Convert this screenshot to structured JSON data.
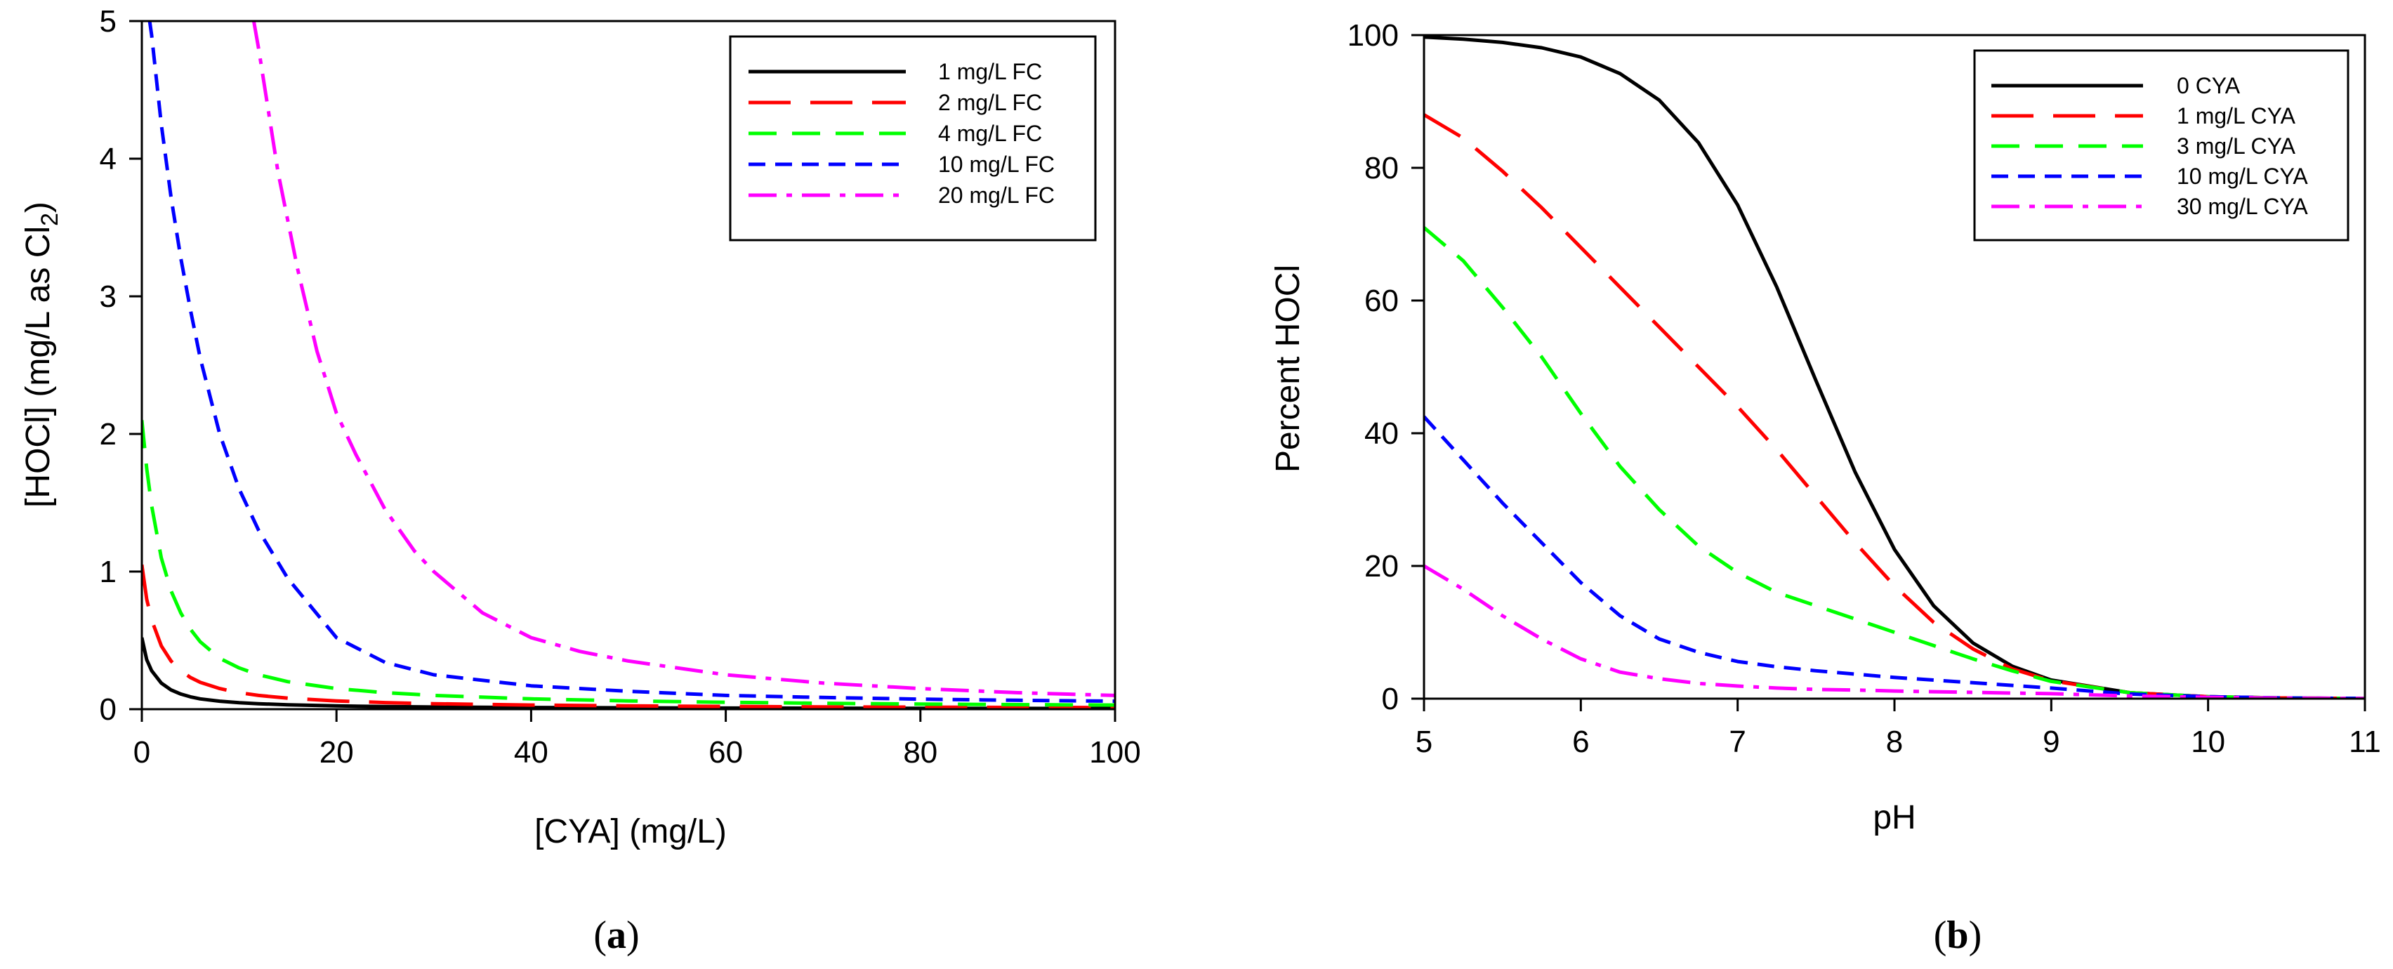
{
  "chart_data": [
    {
      "type": "line",
      "panel_label": "a",
      "title": "",
      "xlabel": "[CYA] (mg/L)",
      "ylabel": "[HOCl] (mg/L as Cl",
      "ylabel_subscript": "2",
      "ylabel_suffix": ")",
      "xlim": [
        0,
        100
      ],
      "ylim": [
        0,
        5
      ],
      "xticks": [
        0,
        20,
        40,
        60,
        80,
        100
      ],
      "yticks": [
        0,
        1,
        2,
        3,
        4,
        5
      ],
      "grid": false,
      "legend_position": "top-right",
      "series": [
        {
          "name": "1 mg/L FC",
          "color": "#000000",
          "dash": "solid",
          "x": [
            0,
            0.5,
            1,
            2,
            3,
            4,
            5,
            6,
            8,
            10,
            12,
            15,
            20,
            25,
            30,
            40,
            50,
            60,
            70,
            80,
            90,
            100
          ],
          "y": [
            0.52,
            0.36,
            0.28,
            0.19,
            0.14,
            0.11,
            0.09,
            0.075,
            0.058,
            0.047,
            0.04,
            0.032,
            0.024,
            0.019,
            0.016,
            0.012,
            0.01,
            0.008,
            0.007,
            0.006,
            0.0055,
            0.005
          ]
        },
        {
          "name": "2 mg/L FC",
          "color": "#ff0000",
          "dash": "long-dash",
          "x": [
            0,
            0.5,
            1,
            2,
            3,
            4,
            5,
            6,
            8,
            10,
            12,
            15,
            20,
            25,
            30,
            40,
            50,
            60,
            70,
            80,
            90,
            100
          ],
          "y": [
            1.05,
            0.8,
            0.65,
            0.46,
            0.35,
            0.28,
            0.23,
            0.195,
            0.15,
            0.12,
            0.1,
            0.08,
            0.06,
            0.048,
            0.04,
            0.03,
            0.024,
            0.02,
            0.017,
            0.015,
            0.013,
            0.012
          ]
        },
        {
          "name": "4 mg/L FC",
          "color": "#00ff00",
          "dash": "medium-dash",
          "x": [
            0,
            0.5,
            1,
            2,
            3,
            4,
            5,
            6,
            8,
            10,
            12,
            15,
            20,
            25,
            30,
            40,
            50,
            60,
            70,
            80,
            90,
            100
          ],
          "y": [
            2.1,
            1.75,
            1.48,
            1.1,
            0.86,
            0.7,
            0.58,
            0.49,
            0.37,
            0.3,
            0.25,
            0.2,
            0.15,
            0.12,
            0.1,
            0.075,
            0.06,
            0.05,
            0.043,
            0.037,
            0.033,
            0.03
          ]
        },
        {
          "name": "10 mg/L FC",
          "color": "#0000ff",
          "dash": "short-dash",
          "x": [
            0.8,
            1,
            2,
            3,
            4,
            5,
            6,
            8,
            10,
            12,
            15,
            20,
            25,
            30,
            40,
            50,
            60,
            70,
            80,
            90,
            100
          ],
          "y": [
            5.0,
            4.9,
            4.25,
            3.72,
            3.28,
            2.9,
            2.55,
            2.0,
            1.6,
            1.3,
            0.95,
            0.52,
            0.34,
            0.25,
            0.17,
            0.13,
            0.1,
            0.085,
            0.073,
            0.065,
            0.058
          ]
        },
        {
          "name": "20 mg/L FC",
          "color": "#ff00ff",
          "dash": "dash-dot",
          "x": [
            11.5,
            12,
            14,
            16,
            18,
            20,
            22,
            25,
            28,
            30,
            35,
            40,
            45,
            50,
            60,
            70,
            80,
            90,
            100
          ],
          "y": [
            5.0,
            4.8,
            3.9,
            3.2,
            2.6,
            2.15,
            1.85,
            1.45,
            1.15,
            1.0,
            0.7,
            0.52,
            0.42,
            0.35,
            0.25,
            0.19,
            0.15,
            0.12,
            0.1
          ]
        }
      ]
    },
    {
      "type": "line",
      "panel_label": "b",
      "title": "",
      "xlabel": "pH",
      "ylabel": "Percent HOCl",
      "xlim": [
        5,
        11
      ],
      "ylim": [
        0,
        100
      ],
      "xticks": [
        5,
        6,
        7,
        8,
        9,
        10,
        11
      ],
      "yticks": [
        0,
        20,
        40,
        60,
        80,
        100
      ],
      "grid": false,
      "legend_position": "top-right",
      "series": [
        {
          "name": "0 CYA",
          "color": "#000000",
          "dash": "solid",
          "x": [
            5,
            5.25,
            5.5,
            5.75,
            6,
            6.25,
            6.5,
            6.75,
            7,
            7.25,
            7.5,
            7.75,
            8,
            8.25,
            8.5,
            8.75,
            9,
            9.5,
            10,
            10.5,
            11
          ],
          "y": [
            99.7,
            99.4,
            98.9,
            98.1,
            96.7,
            94.2,
            90.2,
            83.8,
            74.4,
            62.0,
            47.9,
            34.1,
            22.5,
            14.0,
            8.4,
            4.9,
            2.8,
            0.9,
            0.3,
            0.1,
            0.03
          ]
        },
        {
          "name": "1 mg/L CYA",
          "color": "#ff0000",
          "dash": "long-dash",
          "x": [
            5,
            5.25,
            5.5,
            5.75,
            6,
            6.25,
            6.5,
            6.75,
            7,
            7.25,
            7.5,
            7.75,
            8,
            8.25,
            8.5,
            8.75,
            9,
            9.5,
            10,
            10.5,
            11
          ],
          "y": [
            88,
            84.5,
            79.5,
            74,
            68,
            62,
            56,
            50,
            44,
            37.5,
            30.5,
            23.5,
            17,
            11.5,
            7.5,
            4.5,
            2.7,
            0.9,
            0.3,
            0.1,
            0.03
          ]
        },
        {
          "name": "3 mg/L CYA",
          "color": "#00ff00",
          "dash": "medium-dash",
          "x": [
            5,
            5.25,
            5.5,
            5.75,
            6,
            6.25,
            6.5,
            6.75,
            7,
            7.25,
            7.5,
            7.75,
            8,
            8.25,
            8.5,
            8.75,
            9,
            9.5,
            10,
            10.5,
            11
          ],
          "y": [
            71,
            66,
            59,
            51.5,
            43,
            35,
            28.5,
            23,
            19,
            16,
            14,
            12,
            10,
            8,
            6,
            4.2,
            2.6,
            0.9,
            0.3,
            0.1,
            0.03
          ]
        },
        {
          "name": "10 mg/L CYA",
          "color": "#0000ff",
          "dash": "short-dash",
          "x": [
            5,
            5.25,
            5.5,
            5.75,
            6,
            6.25,
            6.5,
            6.75,
            7,
            7.25,
            7.5,
            7.75,
            8,
            8.25,
            8.5,
            8.75,
            9,
            9.5,
            10,
            10.5,
            11
          ],
          "y": [
            42.5,
            36,
            29.5,
            23.5,
            17.5,
            12.5,
            9,
            7,
            5.6,
            4.8,
            4.2,
            3.7,
            3.2,
            2.8,
            2.4,
            2.0,
            1.6,
            0.7,
            0.3,
            0.1,
            0.03
          ]
        },
        {
          "name": "30 mg/L CYA",
          "color": "#ff00ff",
          "dash": "dash-dot",
          "x": [
            5,
            5.25,
            5.5,
            5.75,
            6,
            6.25,
            6.5,
            6.75,
            7,
            7.25,
            7.5,
            7.75,
            8,
            8.25,
            8.5,
            8.75,
            9,
            9.5,
            10,
            10.5,
            11
          ],
          "y": [
            20,
            16.5,
            12.5,
            9,
            6,
            4,
            3,
            2.3,
            1.9,
            1.6,
            1.4,
            1.3,
            1.15,
            1.05,
            0.95,
            0.85,
            0.75,
            0.4,
            0.2,
            0.08,
            0.03
          ]
        }
      ]
    }
  ]
}
